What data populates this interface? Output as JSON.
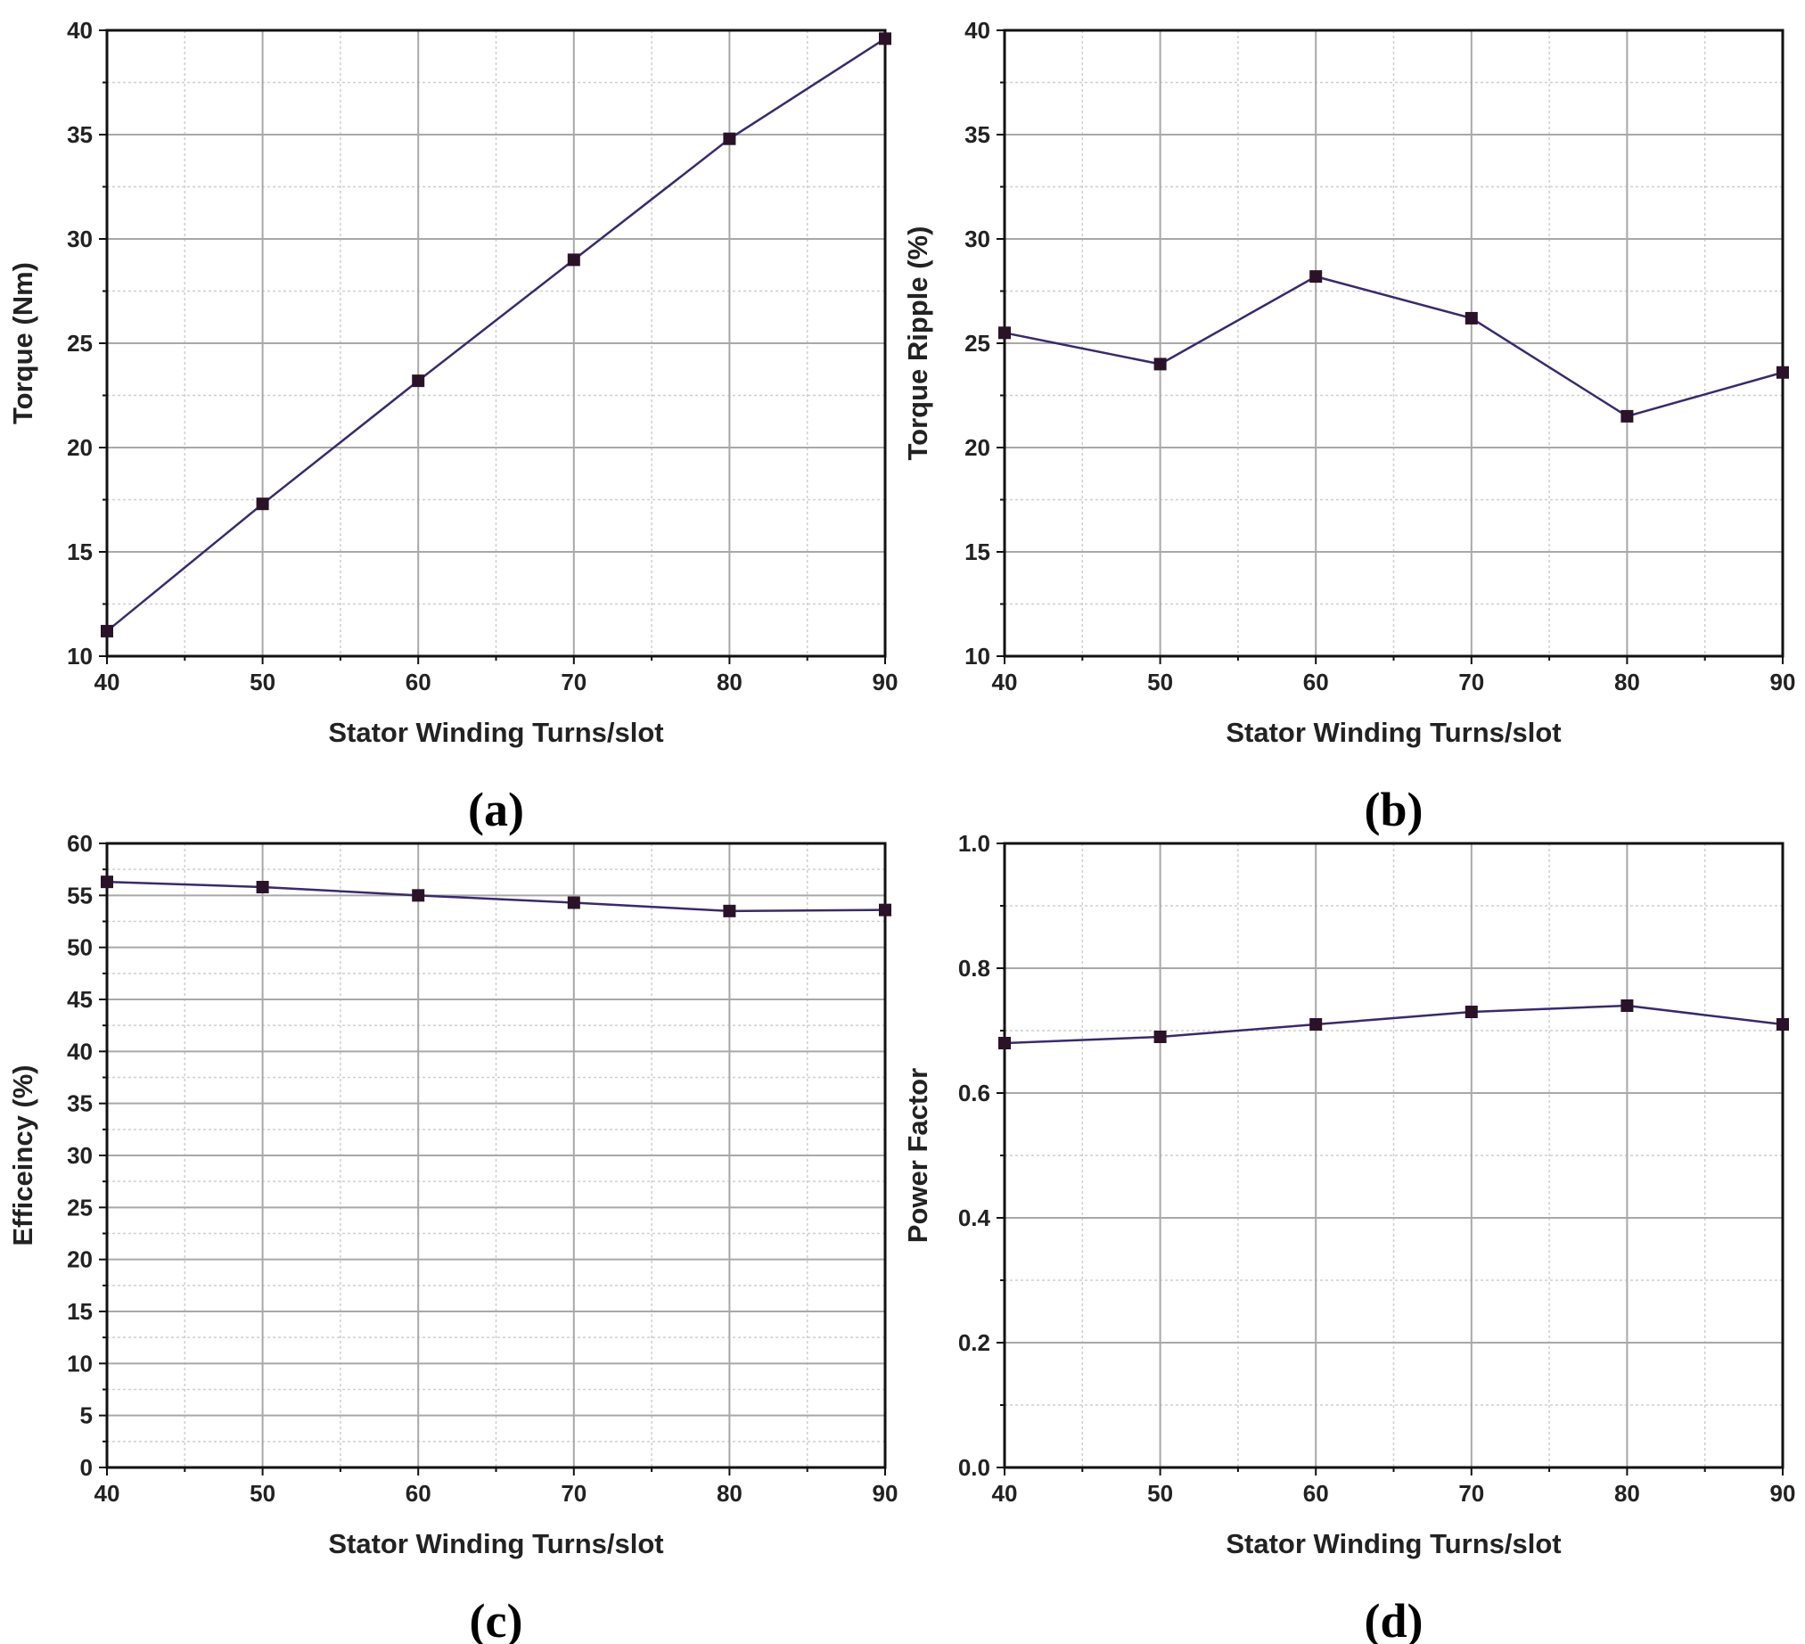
{
  "colors": {
    "line": "#3a2a6a",
    "marker": "#2a1228"
  },
  "chart_data": [
    {
      "type": "line",
      "panel_label": "(a)",
      "xlabel": "Stator Winding Turns/slot",
      "ylabel": "Torque (Nm)",
      "x": [
        40,
        50,
        60,
        70,
        80,
        90
      ],
      "series": [
        {
          "name": "Torque",
          "values": [
            11.2,
            17.3,
            23.2,
            29.0,
            34.8,
            39.6
          ]
        }
      ],
      "xlim": [
        40,
        90
      ],
      "ylim": [
        10,
        40
      ],
      "xticks": [
        40,
        50,
        60,
        70,
        80,
        90
      ],
      "yticks": [
        10,
        15,
        20,
        25,
        30,
        35,
        40
      ],
      "xminor": [
        45,
        55,
        65,
        75,
        85
      ],
      "yminor": [
        12.5,
        17.5,
        22.5,
        27.5,
        32.5,
        37.5
      ],
      "grid": true
    },
    {
      "type": "line",
      "panel_label": "(b)",
      "xlabel": "Stator Winding Turns/slot",
      "ylabel": "Torque Ripple (%)",
      "x": [
        40,
        50,
        60,
        70,
        80,
        90
      ],
      "series": [
        {
          "name": "Torque Ripple",
          "values": [
            25.5,
            24.0,
            28.2,
            26.2,
            21.5,
            23.6
          ]
        }
      ],
      "xlim": [
        40,
        90
      ],
      "ylim": [
        10,
        40
      ],
      "xticks": [
        40,
        50,
        60,
        70,
        80,
        90
      ],
      "yticks": [
        10,
        15,
        20,
        25,
        30,
        35,
        40
      ],
      "xminor": [
        45,
        55,
        65,
        75,
        85
      ],
      "yminor": [
        12.5,
        17.5,
        22.5,
        27.5,
        32.5,
        37.5
      ],
      "grid": true
    },
    {
      "type": "line",
      "panel_label": "(c)",
      "xlabel": "Stator Winding Turns/slot",
      "ylabel": "Efficeincy (%)",
      "x": [
        40,
        50,
        60,
        70,
        80,
        90
      ],
      "series": [
        {
          "name": "Efficiency",
          "values": [
            56.3,
            55.8,
            55.0,
            54.3,
            53.5,
            53.6
          ]
        }
      ],
      "xlim": [
        40,
        90
      ],
      "ylim": [
        0,
        60
      ],
      "xticks": [
        40,
        50,
        60,
        70,
        80,
        90
      ],
      "yticks": [
        0,
        5,
        10,
        15,
        20,
        25,
        30,
        35,
        40,
        45,
        50,
        55,
        60
      ],
      "xminor": [
        45,
        55,
        65,
        75,
        85
      ],
      "yminor": [
        2.5,
        7.5,
        12.5,
        17.5,
        22.5,
        27.5,
        32.5,
        37.5,
        42.5,
        47.5,
        52.5,
        57.5
      ],
      "grid": true
    },
    {
      "type": "line",
      "panel_label": "(d)",
      "xlabel": "Stator Winding Turns/slot",
      "ylabel": "Power Factor",
      "x": [
        40,
        50,
        60,
        70,
        80,
        90
      ],
      "series": [
        {
          "name": "Power Factor",
          "values": [
            0.68,
            0.69,
            0.71,
            0.73,
            0.74,
            0.71
          ]
        }
      ],
      "xlim": [
        40,
        90
      ],
      "ylim": [
        0.0,
        1.0
      ],
      "xticks": [
        40,
        50,
        60,
        70,
        80,
        90
      ],
      "yticks": [
        "0.0",
        "0.2",
        "0.4",
        "0.6",
        "0.8",
        "1.0"
      ],
      "xminor": [
        45,
        55,
        65,
        75,
        85
      ],
      "yminor": [
        0.1,
        0.3,
        0.5,
        0.7,
        0.9
      ],
      "grid": true
    }
  ]
}
